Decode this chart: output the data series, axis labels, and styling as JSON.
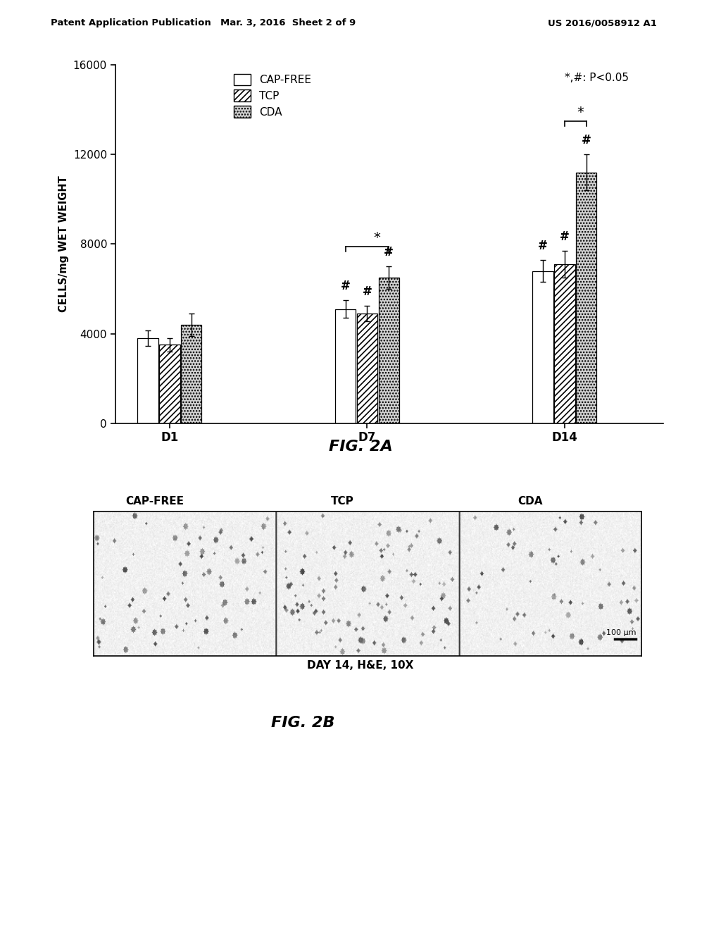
{
  "header_left": "Patent Application Publication",
  "header_mid": "Mar. 3, 2016  Sheet 2 of 9",
  "header_right": "US 2016/0058912 A1",
  "fig2a_title": "FIG. 2A",
  "fig2b_title": "FIG. 2B",
  "ylabel": "CELLS/mg WET WEIGHT",
  "xlabel_groups": [
    "D1",
    "D7",
    "D14"
  ],
  "legend_labels": [
    "CAP-FREE",
    "TCP",
    "CDA"
  ],
  "ylim": [
    0,
    16000
  ],
  "yticks": [
    0,
    4000,
    8000,
    12000,
    16000
  ],
  "bar_values": {
    "D1": [
      3800,
      3500,
      4400
    ],
    "D7": [
      5100,
      4900,
      6500
    ],
    "D14": [
      6800,
      7100,
      11200
    ]
  },
  "bar_errors": {
    "D1": [
      350,
      300,
      500
    ],
    "D7": [
      400,
      350,
      500
    ],
    "D14": [
      500,
      600,
      800
    ]
  },
  "pvalue_text": "*,#: P<0.05",
  "image_section_labels": [
    "CAP-FREE",
    "TCP",
    "CDA"
  ],
  "image_caption": "DAY 14, H&E, 10X",
  "scalebar_text": "100 μm",
  "background_color": "white",
  "fig_width": 10.24,
  "fig_height": 13.2,
  "bar_width": 0.22
}
